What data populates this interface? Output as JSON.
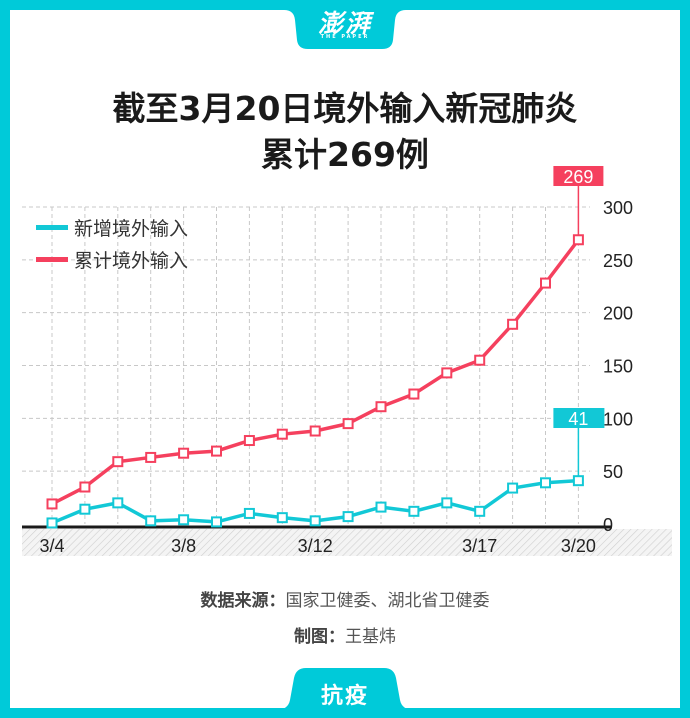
{
  "header": {
    "brand": "澎湃",
    "brand_sub": "THE PAPER",
    "title_line1": "截至3月20日境外输入新冠肺炎",
    "title_line2": "累计269例"
  },
  "colors": {
    "frame": "#00cad9",
    "new_series": "#12c8d6",
    "cumulative_series": "#f5405e",
    "text": "#1a1a1a",
    "grid": "#c8c8c8"
  },
  "legend": [
    {
      "label": "新增境外输入",
      "color": "#12c8d6"
    },
    {
      "label": "累计境外输入",
      "color": "#f5405e"
    }
  ],
  "footer": {
    "source_label": "数据来源：",
    "source_value": "国家卫健委、湖北省卫健委",
    "credit_label": "制图：",
    "credit_value": "王基炜",
    "tag": "抗疫"
  },
  "chart_data": {
    "type": "line",
    "title": "截至3月20日境外输入新冠肺炎累计269例",
    "xlabel": "",
    "ylabel": "",
    "x": [
      "3/4",
      "3/5",
      "3/6",
      "3/7",
      "3/8",
      "3/9",
      "3/10",
      "3/11",
      "3/12",
      "3/13",
      "3/14",
      "3/15",
      "3/16",
      "3/17",
      "3/18",
      "3/19",
      "3/20"
    ],
    "x_tick_labels": [
      "3/4",
      "3/8",
      "3/12",
      "3/17",
      "3/20"
    ],
    "y_ticks": [
      0,
      50,
      100,
      150,
      200,
      250,
      300
    ],
    "ylim": [
      0,
      300
    ],
    "grid": true,
    "legend_position": "top-left",
    "series": [
      {
        "name": "新增境外输入",
        "color": "#12c8d6",
        "values": [
          1,
          14,
          20,
          3,
          4,
          2,
          10,
          6,
          3,
          7,
          16,
          12,
          20,
          12,
          34,
          39,
          41
        ]
      },
      {
        "name": "累计境外输入",
        "color": "#f5405e",
        "values": [
          19,
          35,
          59,
          63,
          67,
          69,
          79,
          85,
          88,
          95,
          111,
          123,
          143,
          155,
          189,
          228,
          269
        ]
      }
    ],
    "annotations": [
      {
        "series": "累计境外输入",
        "x": "3/20",
        "label": "269"
      },
      {
        "series": "新增境外输入",
        "x": "3/20",
        "label": "41"
      }
    ]
  }
}
